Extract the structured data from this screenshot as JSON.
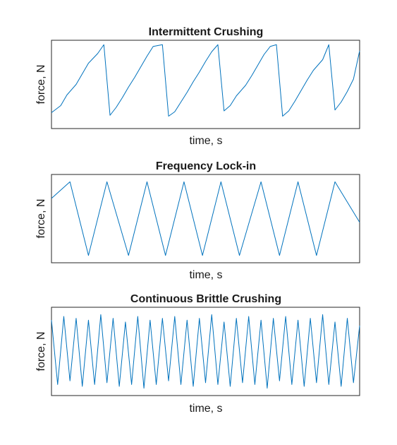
{
  "chart_data": [
    {
      "type": "line",
      "title": "Intermittent Crushing",
      "xlabel": "time, s",
      "ylabel": "force, N",
      "xlim": [
        0,
        1
      ],
      "ylim": [
        0,
        1
      ],
      "grid": false,
      "series": [
        {
          "color": "#0072BD",
          "x": [
            0,
            0.03,
            0.05,
            0.08,
            0.1,
            0.12,
            0.15,
            0.17,
            0.19,
            0.21,
            0.23,
            0.25,
            0.27,
            0.29,
            0.31,
            0.33,
            0.36,
            0.38,
            0.4,
            0.42,
            0.44,
            0.46,
            0.48,
            0.5,
            0.52,
            0.54,
            0.56,
            0.58,
            0.6,
            0.63,
            0.65,
            0.67,
            0.69,
            0.71,
            0.73,
            0.75,
            0.77,
            0.79,
            0.81,
            0.83,
            0.85,
            0.88,
            0.9,
            0.92,
            0.94,
            0.96,
            0.98,
            1.0
          ],
          "y": [
            0.18,
            0.26,
            0.38,
            0.5,
            0.62,
            0.74,
            0.85,
            0.95,
            0.15,
            0.24,
            0.35,
            0.47,
            0.58,
            0.7,
            0.82,
            0.93,
            0.95,
            0.14,
            0.19,
            0.3,
            0.41,
            0.53,
            0.64,
            0.76,
            0.87,
            0.95,
            0.2,
            0.26,
            0.37,
            0.49,
            0.6,
            0.72,
            0.84,
            0.93,
            0.95,
            0.14,
            0.2,
            0.31,
            0.43,
            0.55,
            0.66,
            0.78,
            0.95,
            0.21,
            0.3,
            0.42,
            0.56,
            0.88
          ]
        }
      ]
    },
    {
      "type": "line",
      "title": "Frequency Lock-in",
      "xlabel": "time, s",
      "ylabel": "force, N",
      "xlim": [
        0,
        1
      ],
      "ylim": [
        -1.2,
        1.2
      ],
      "grid": false,
      "series": [
        {
          "color": "#0072BD",
          "x": [
            0,
            0.06,
            0.12,
            0.18,
            0.25,
            0.31,
            0.37,
            0.43,
            0.49,
            0.55,
            0.61,
            0.68,
            0.74,
            0.8,
            0.86,
            0.92,
            1.0
          ],
          "y": [
            0.55,
            1.0,
            -1.0,
            1.0,
            -1.0,
            1.0,
            -1.0,
            1.0,
            -1.0,
            1.0,
            -1.0,
            1.0,
            -1.0,
            1.0,
            -1.0,
            1.0,
            -0.1
          ]
        }
      ]
    },
    {
      "type": "line",
      "title": "Continuous Brittle Crushing",
      "xlabel": "time, s",
      "ylabel": "force, N",
      "xlim": [
        0,
        1
      ],
      "ylim": [
        -1.2,
        1.2
      ],
      "grid": false,
      "series": [
        {
          "color": "#0072BD",
          "x": [
            0,
            0.02,
            0.04,
            0.06,
            0.08,
            0.1,
            0.12,
            0.14,
            0.16,
            0.18,
            0.2,
            0.22,
            0.24,
            0.26,
            0.28,
            0.3,
            0.32,
            0.34,
            0.36,
            0.38,
            0.4,
            0.42,
            0.44,
            0.46,
            0.48,
            0.5,
            0.52,
            0.54,
            0.56,
            0.58,
            0.6,
            0.62,
            0.64,
            0.66,
            0.68,
            0.7,
            0.72,
            0.74,
            0.76,
            0.78,
            0.8,
            0.82,
            0.84,
            0.86,
            0.88,
            0.9,
            0.92,
            0.94,
            0.96,
            0.98,
            1.0
          ],
          "y": [
            0.85,
            -0.9,
            0.95,
            -0.8,
            0.9,
            -0.95,
            0.85,
            -0.9,
            1.0,
            -0.85,
            0.9,
            -0.95,
            0.8,
            -0.9,
            0.95,
            -1.0,
            0.85,
            -0.9,
            0.9,
            -0.8,
            0.95,
            -0.9,
            0.85,
            -0.95,
            0.9,
            -0.85,
            1.0,
            -0.9,
            0.8,
            -0.95,
            0.9,
            -0.85,
            0.95,
            -0.9,
            0.85,
            -1.0,
            0.9,
            -0.8,
            0.95,
            -0.9,
            0.85,
            -0.95,
            0.9,
            -0.85,
            1.0,
            -0.9,
            0.8,
            -0.95,
            0.9,
            -0.85,
            0.7
          ]
        }
      ]
    }
  ]
}
